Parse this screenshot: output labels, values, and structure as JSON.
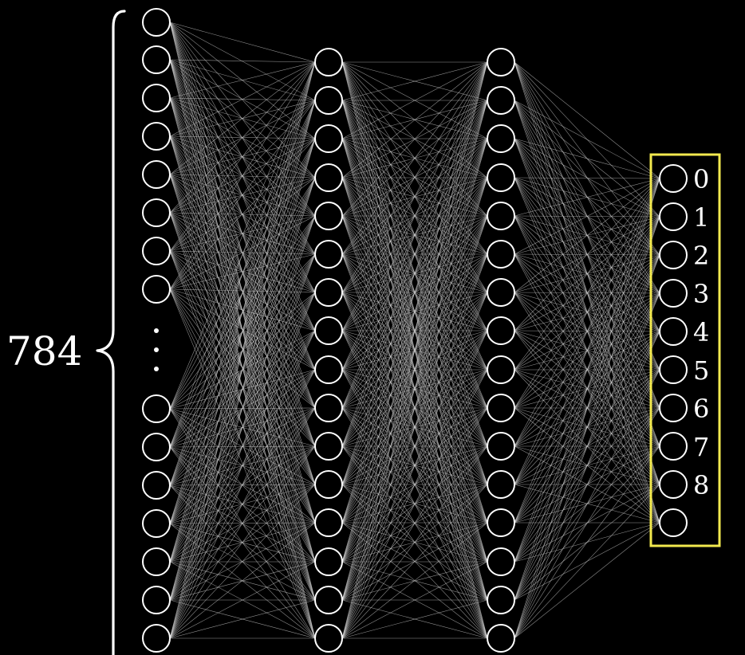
{
  "input_layer": {
    "count_label": "784"
  },
  "output_layer": {
    "digit_labels": [
      "0",
      "1",
      "2",
      "3",
      "4",
      "5",
      "6",
      "7",
      "8"
    ]
  },
  "colors": {
    "background": "#000000",
    "neuron_outline": "#ffffff",
    "edge": "#cfcfcf",
    "highlight_box": "#f2e94e"
  }
}
